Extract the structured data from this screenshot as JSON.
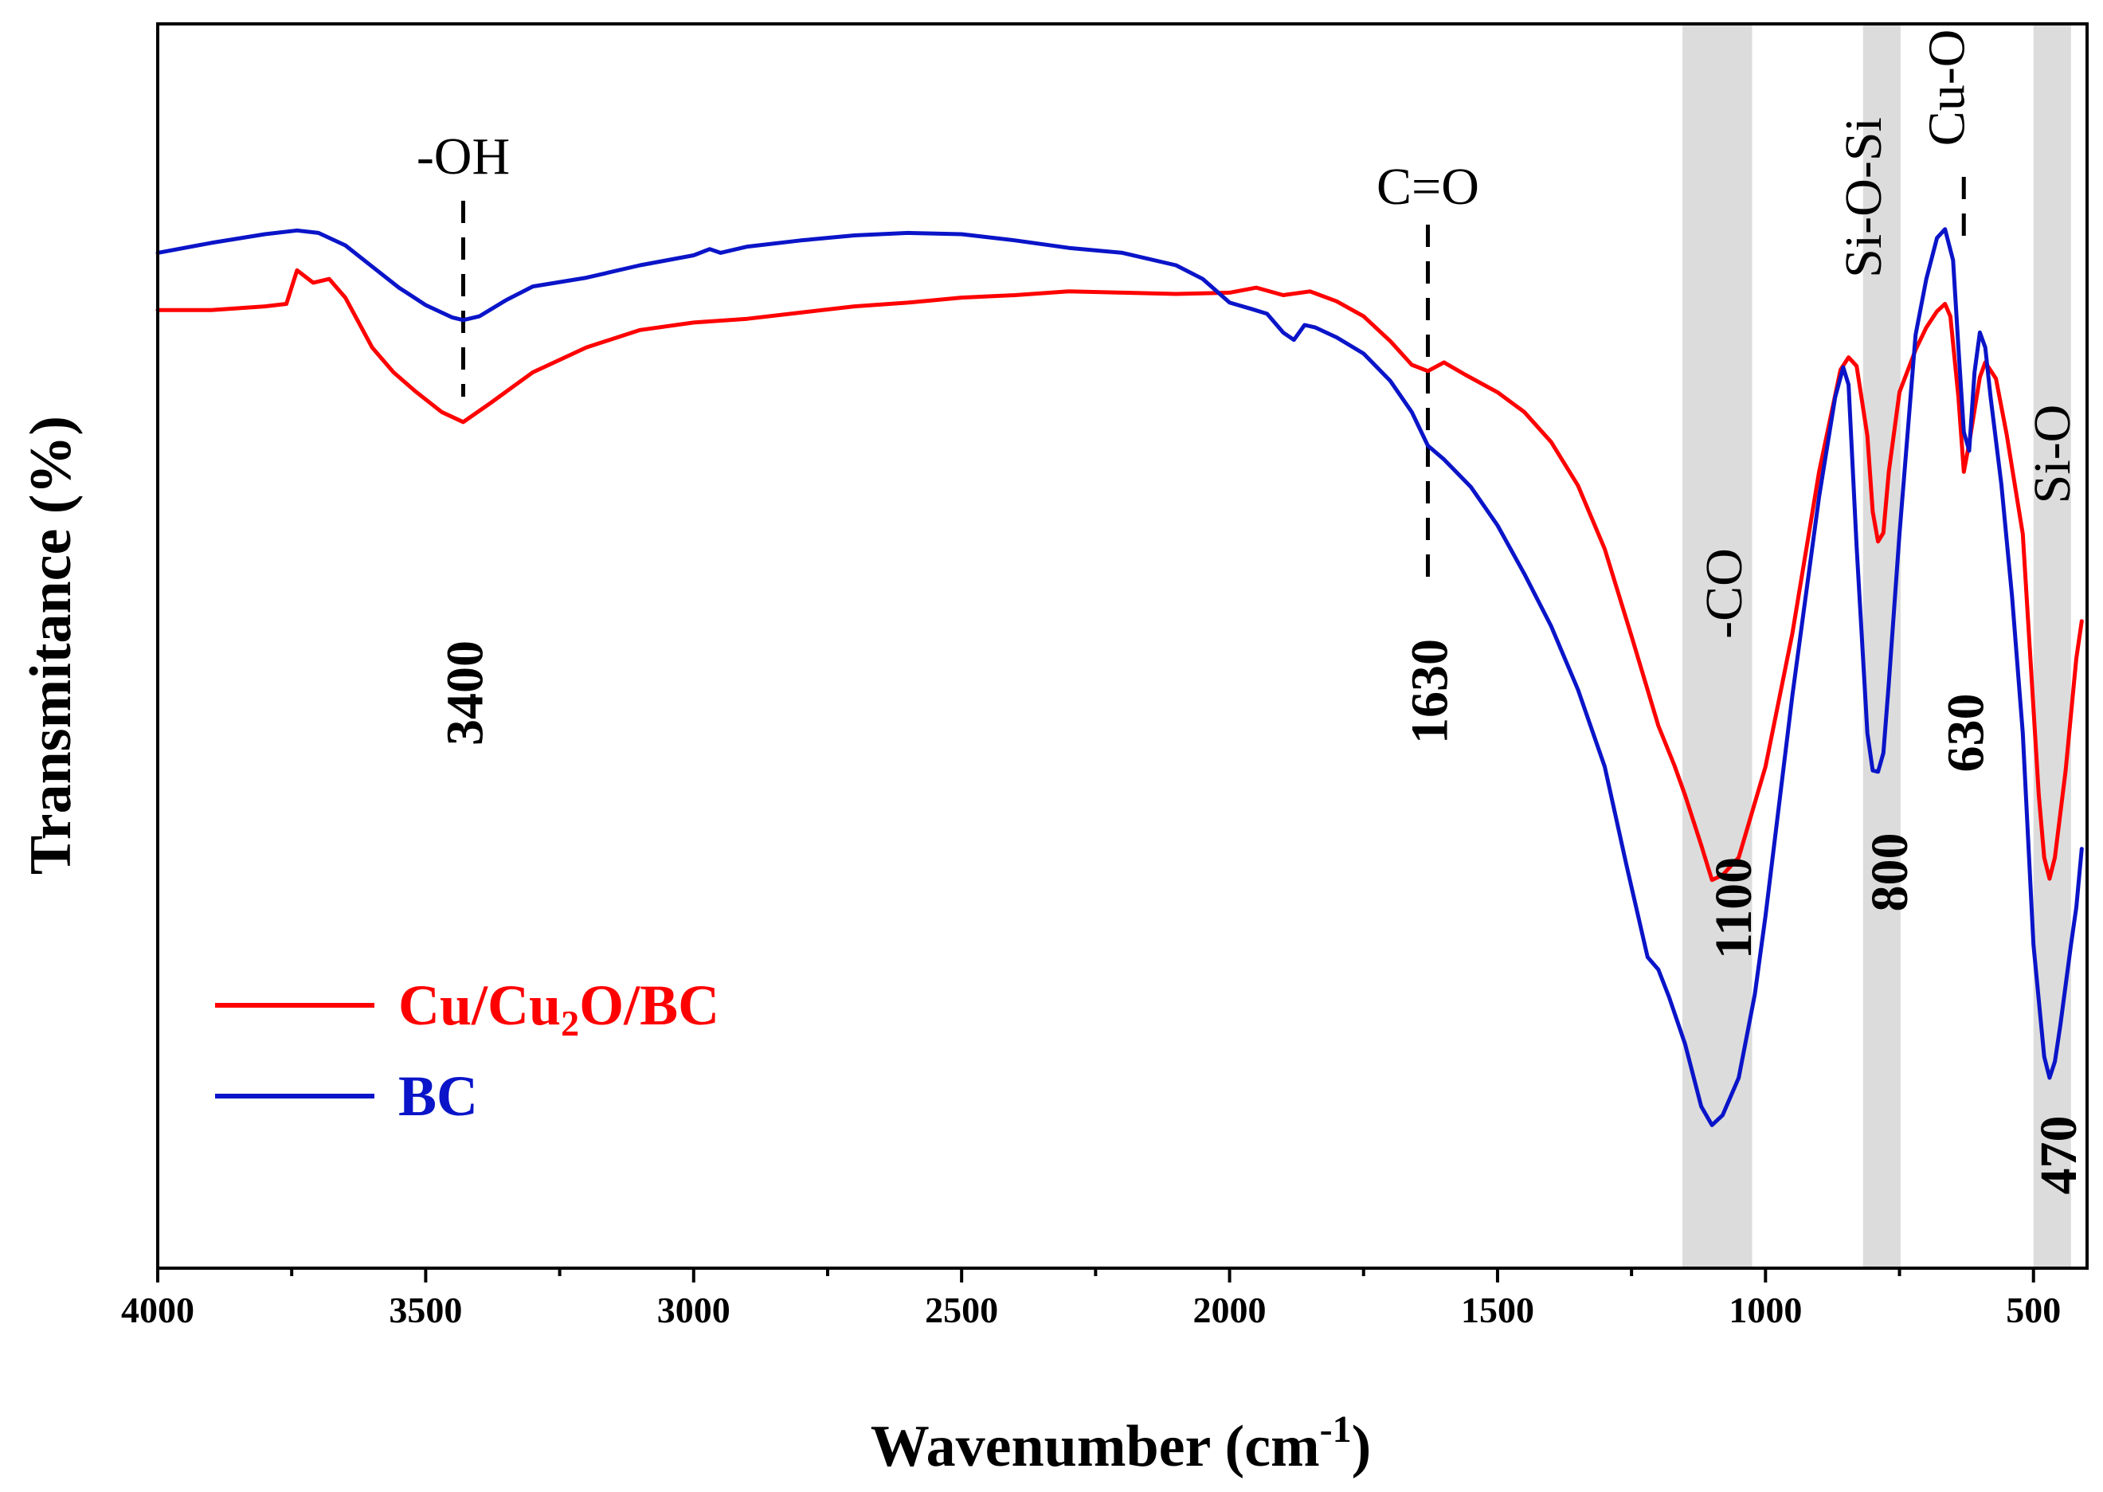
{
  "chart_data": {
    "type": "line",
    "xlabel_main": "Wavenumber (cm",
    "xlabel_sup": "-1",
    "xlabel_end": ")",
    "ylabel": "Transmitance (%)",
    "xlim": [
      4000,
      400
    ],
    "ylim": [
      0,
      100
    ],
    "x_reversed": true,
    "y_ticks_shown": false,
    "x_ticks": [
      4000,
      3500,
      3000,
      2500,
      2000,
      1500,
      1000,
      500
    ],
    "x_tick_labels": [
      "4000",
      "3500",
      "3000",
      "2500",
      "2000",
      "1500",
      "1000",
      "500"
    ],
    "grid": false,
    "legend_position": "bottom-left",
    "colors": {
      "cu": "#ff0000",
      "bc": "#0a14c8",
      "band": "#dcdcdc"
    },
    "series": [
      {
        "name": "Cu/Cu2O/BC",
        "legend_label_parts": [
          "Cu/Cu",
          "2",
          "O/BC"
        ],
        "color": "#ff0000",
        "points": [
          [
            4000,
            77
          ],
          [
            3900,
            77
          ],
          [
            3800,
            77.3
          ],
          [
            3760,
            77.5
          ],
          [
            3740,
            80.2
          ],
          [
            3710,
            79.2
          ],
          [
            3680,
            79.5
          ],
          [
            3650,
            78
          ],
          [
            3600,
            74
          ],
          [
            3560,
            72
          ],
          [
            3520,
            70.5
          ],
          [
            3470,
            68.8
          ],
          [
            3430,
            68
          ],
          [
            3380,
            69.5
          ],
          [
            3300,
            72
          ],
          [
            3200,
            74
          ],
          [
            3100,
            75.4
          ],
          [
            3000,
            76
          ],
          [
            2900,
            76.3
          ],
          [
            2800,
            76.8
          ],
          [
            2700,
            77.3
          ],
          [
            2600,
            77.6
          ],
          [
            2500,
            78
          ],
          [
            2400,
            78.2
          ],
          [
            2300,
            78.5
          ],
          [
            2200,
            78.4
          ],
          [
            2100,
            78.3
          ],
          [
            2000,
            78.4
          ],
          [
            1950,
            78.8
          ],
          [
            1900,
            78.2
          ],
          [
            1850,
            78.5
          ],
          [
            1800,
            77.7
          ],
          [
            1750,
            76.5
          ],
          [
            1700,
            74.5
          ],
          [
            1660,
            72.6
          ],
          [
            1630,
            72.1
          ],
          [
            1600,
            72.8
          ],
          [
            1560,
            71.8
          ],
          [
            1500,
            70.4
          ],
          [
            1450,
            68.8
          ],
          [
            1400,
            66.4
          ],
          [
            1350,
            62.9
          ],
          [
            1300,
            57.8
          ],
          [
            1250,
            50.8
          ],
          [
            1200,
            43.6
          ],
          [
            1170,
            40.4
          ],
          [
            1150,
            38
          ],
          [
            1120,
            34
          ],
          [
            1100,
            31.2
          ],
          [
            1080,
            31.6
          ],
          [
            1050,
            33
          ],
          [
            1000,
            40.3
          ],
          [
            950,
            51
          ],
          [
            900,
            64
          ],
          [
            860,
            72.2
          ],
          [
            845,
            73.2
          ],
          [
            830,
            72.5
          ],
          [
            810,
            66.9
          ],
          [
            800,
            60.8
          ],
          [
            790,
            58.4
          ],
          [
            780,
            59.1
          ],
          [
            770,
            64
          ],
          [
            750,
            70.4
          ],
          [
            720,
            73.8
          ],
          [
            700,
            75.6
          ],
          [
            680,
            76.9
          ],
          [
            665,
            77.5
          ],
          [
            655,
            76.5
          ],
          [
            640,
            70
          ],
          [
            630,
            64
          ],
          [
            620,
            66.3
          ],
          [
            600,
            71.6
          ],
          [
            590,
            72.8
          ],
          [
            570,
            71.5
          ],
          [
            550,
            67
          ],
          [
            520,
            59
          ],
          [
            500,
            45
          ],
          [
            490,
            38
          ],
          [
            480,
            33
          ],
          [
            470,
            31.3
          ],
          [
            460,
            33
          ],
          [
            440,
            40
          ],
          [
            420,
            49
          ],
          [
            410,
            52
          ]
        ]
      },
      {
        "name": "BC",
        "legend_label_parts": [
          "BC"
        ],
        "color": "#0a14c8",
        "points": [
          [
            4000,
            81.6
          ],
          [
            3900,
            82.4
          ],
          [
            3800,
            83.1
          ],
          [
            3740,
            83.4
          ],
          [
            3700,
            83.2
          ],
          [
            3650,
            82.2
          ],
          [
            3600,
            80.5
          ],
          [
            3550,
            78.8
          ],
          [
            3500,
            77.4
          ],
          [
            3450,
            76.4
          ],
          [
            3430,
            76.2
          ],
          [
            3400,
            76.5
          ],
          [
            3350,
            77.8
          ],
          [
            3300,
            78.9
          ],
          [
            3200,
            79.6
          ],
          [
            3100,
            80.6
          ],
          [
            3000,
            81.4
          ],
          [
            2970,
            81.9
          ],
          [
            2950,
            81.6
          ],
          [
            2900,
            82.1
          ],
          [
            2800,
            82.6
          ],
          [
            2700,
            83
          ],
          [
            2600,
            83.2
          ],
          [
            2500,
            83.1
          ],
          [
            2400,
            82.6
          ],
          [
            2300,
            82
          ],
          [
            2200,
            81.6
          ],
          [
            2100,
            80.6
          ],
          [
            2050,
            79.5
          ],
          [
            2000,
            77.6
          ],
          [
            1960,
            77.1
          ],
          [
            1930,
            76.7
          ],
          [
            1900,
            75.2
          ],
          [
            1880,
            74.6
          ],
          [
            1860,
            75.8
          ],
          [
            1840,
            75.6
          ],
          [
            1800,
            74.8
          ],
          [
            1750,
            73.5
          ],
          [
            1700,
            71.3
          ],
          [
            1660,
            68.8
          ],
          [
            1630,
            66.1
          ],
          [
            1600,
            65
          ],
          [
            1550,
            62.8
          ],
          [
            1500,
            59.7
          ],
          [
            1450,
            55.8
          ],
          [
            1400,
            51.6
          ],
          [
            1350,
            46.5
          ],
          [
            1300,
            40.3
          ],
          [
            1260,
            32.5
          ],
          [
            1220,
            25
          ],
          [
            1200,
            24
          ],
          [
            1180,
            21.8
          ],
          [
            1150,
            18
          ],
          [
            1120,
            13
          ],
          [
            1100,
            11.5
          ],
          [
            1080,
            12.3
          ],
          [
            1050,
            15.3
          ],
          [
            1020,
            22
          ],
          [
            1000,
            28.3
          ],
          [
            950,
            46
          ],
          [
            900,
            62
          ],
          [
            870,
            70
          ],
          [
            855,
            72.4
          ],
          [
            845,
            71
          ],
          [
            830,
            58
          ],
          [
            810,
            43
          ],
          [
            800,
            40
          ],
          [
            790,
            39.9
          ],
          [
            780,
            41.4
          ],
          [
            770,
            47
          ],
          [
            750,
            59
          ],
          [
            720,
            75
          ],
          [
            700,
            79.5
          ],
          [
            680,
            82.8
          ],
          [
            665,
            83.5
          ],
          [
            650,
            81
          ],
          [
            640,
            74
          ],
          [
            630,
            67.2
          ],
          [
            620,
            65.7
          ],
          [
            610,
            72
          ],
          [
            600,
            75.2
          ],
          [
            590,
            74
          ],
          [
            580,
            70
          ],
          [
            560,
            63
          ],
          [
            540,
            54
          ],
          [
            520,
            43
          ],
          [
            500,
            26
          ],
          [
            480,
            17
          ],
          [
            470,
            15.3
          ],
          [
            460,
            16.6
          ],
          [
            450,
            19.5
          ],
          [
            430,
            26
          ],
          [
            420,
            29
          ],
          [
            410,
            33.7
          ]
        ]
      }
    ],
    "bands": [
      {
        "from": 1155,
        "to": 1025
      },
      {
        "from": 818,
        "to": 748
      },
      {
        "from": 500,
        "to": 430
      }
    ],
    "annotations": [
      {
        "label": "-OH",
        "x": 3430,
        "orientation": "horizontal"
      },
      {
        "label": "C=O",
        "x": 1630,
        "orientation": "horizontal"
      },
      {
        "label": "-CO",
        "x": 1090,
        "orientation": "vertical"
      },
      {
        "label": "Si-O-Si",
        "x": 785,
        "orientation": "vertical"
      },
      {
        "label": "Cu-O",
        "x": 630,
        "orientation": "vertical"
      },
      {
        "label": "Si-O",
        "x": 470,
        "orientation": "vertical"
      }
    ],
    "peak_labels": [
      {
        "label": "3400",
        "x": 3430
      },
      {
        "label": "1630",
        "x": 1630
      },
      {
        "label": "1100",
        "x": 1090
      },
      {
        "label": "800",
        "x": 785
      },
      {
        "label": "630",
        "x": 630
      },
      {
        "label": "470",
        "x": 470
      }
    ]
  }
}
